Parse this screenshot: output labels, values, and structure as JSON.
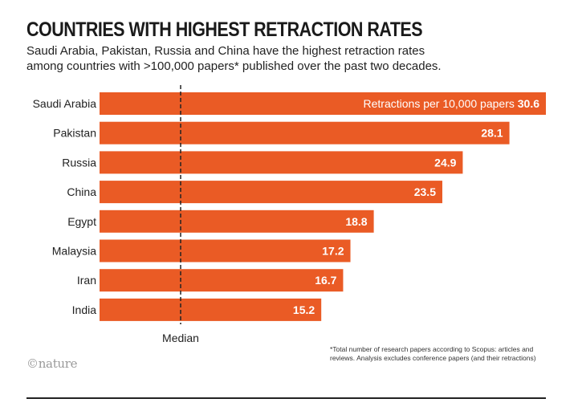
{
  "title": "COUNTRIES WITH HIGHEST RETRACTION RATES",
  "subtitle": [
    "Saudi Arabia, Pakistan, Russia and China have the highest retraction rates",
    "among countries with >100,000 papers* published over the past two decades."
  ],
  "footnote": "*Total number of research papers according to Scopus: articles and reviews. Analysis excludes conference papers (and their retractions)",
  "logo": "©nature",
  "colors": {
    "bar": "#ea5b25",
    "text": "#222222",
    "median_line": "#222222"
  },
  "chart_data": {
    "type": "bar",
    "orientation": "horizontal",
    "categories": [
      "Saudi Arabia",
      "Pakistan",
      "Russia",
      "China",
      "Egypt",
      "Malaysia",
      "Iran",
      "India"
    ],
    "values": [
      30.6,
      28.1,
      24.9,
      23.5,
      18.8,
      17.2,
      16.7,
      15.2
    ],
    "value_labels": [
      "30.6",
      "28.1",
      "24.9",
      "23.5",
      "18.8",
      "17.2",
      "16.7",
      "15.2"
    ],
    "first_bar_label": "Retractions per 10,000 papers",
    "reference_line": {
      "label": "Median",
      "style": "dashed"
    },
    "xlim": [
      0,
      30.6
    ],
    "grid": false,
    "legend": "none"
  }
}
